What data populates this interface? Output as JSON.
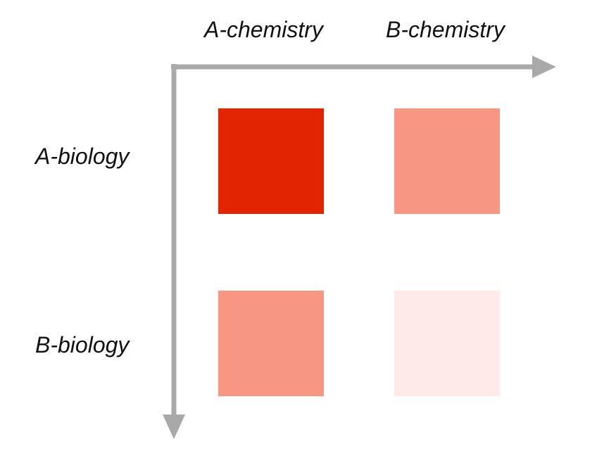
{
  "columns": [
    {
      "label": "A-chemistry"
    },
    {
      "label": "B-chemistry"
    }
  ],
  "rows": [
    {
      "label": "A-biology"
    },
    {
      "label": "B-biology"
    }
  ],
  "cells": [
    {
      "row": "A-biology",
      "col": "A-chemistry",
      "color": "#E22400",
      "level": "high"
    },
    {
      "row": "A-biology",
      "col": "B-chemistry",
      "color": "#F79683",
      "level": "medium"
    },
    {
      "row": "B-biology",
      "col": "A-chemistry",
      "color": "#F79683",
      "level": "medium"
    },
    {
      "row": "B-biology",
      "col": "B-chemistry",
      "color": "#FEEAE6",
      "level": "low"
    }
  ],
  "colors": {
    "axis": "#A9A9A9",
    "text": "#111111"
  }
}
